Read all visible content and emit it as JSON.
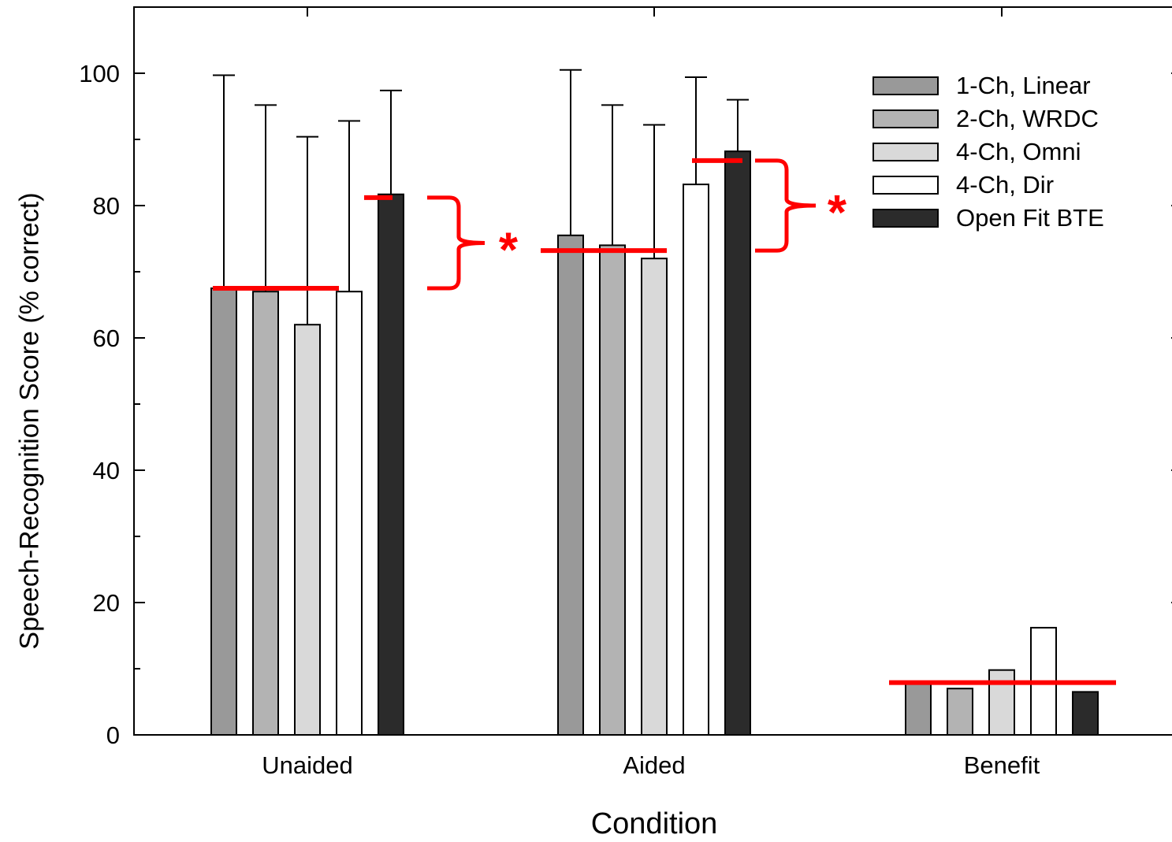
{
  "chart_data": {
    "type": "bar",
    "xlabel": "Condition",
    "ylabel": "Speech-Recognition Score (% correct)",
    "ylim": [
      0,
      100
    ],
    "yticks": [
      0,
      20,
      40,
      60,
      80,
      100
    ],
    "categories": [
      "Unaided",
      "Aided",
      "Benefit"
    ],
    "series": [
      {
        "name": "1-Ch, Linear",
        "color": "#999999",
        "values": [
          67.5,
          75.5,
          7.7
        ],
        "error_upper": [
          99.7,
          100.5,
          null
        ]
      },
      {
        "name": "2-Ch, WRDC",
        "color": "#b3b3b3",
        "values": [
          67.0,
          74.0,
          7.0
        ],
        "error_upper": [
          95.2,
          95.2,
          null
        ]
      },
      {
        "name": "4-Ch, Omni",
        "color": "#d9d9d9",
        "values": [
          62.0,
          72.0,
          9.8
        ],
        "error_upper": [
          90.4,
          92.2,
          null
        ]
      },
      {
        "name": "4-Ch, Dir",
        "color": "#ffffff",
        "values": [
          67.0,
          83.2,
          16.2
        ],
        "error_upper": [
          92.8,
          99.4,
          null
        ]
      },
      {
        "name": "Open Fit BTE",
        "color": "#2b2b2b",
        "values": [
          81.7,
          88.2,
          6.5
        ],
        "error_upper": [
          97.4,
          96.0,
          null
        ]
      }
    ],
    "annotations": {
      "color": "#ff0000",
      "mean_lines": [
        {
          "category": "Unaided",
          "value": 67.5
        },
        {
          "category": "Aided",
          "value": 73.2
        },
        {
          "category": "Benefit",
          "value": 7.9
        }
      ],
      "ref_lines": [
        {
          "category": "Unaided",
          "value": 81.2
        },
        {
          "category": "Aided",
          "value": 86.8
        }
      ],
      "significance_markers": [
        {
          "category": "Unaided",
          "low": 67.5,
          "high": 81.2,
          "label": "*"
        },
        {
          "category": "Aided",
          "low": 73.2,
          "high": 86.8,
          "label": "*"
        }
      ]
    },
    "legend_position": "top-right",
    "grid": false
  }
}
